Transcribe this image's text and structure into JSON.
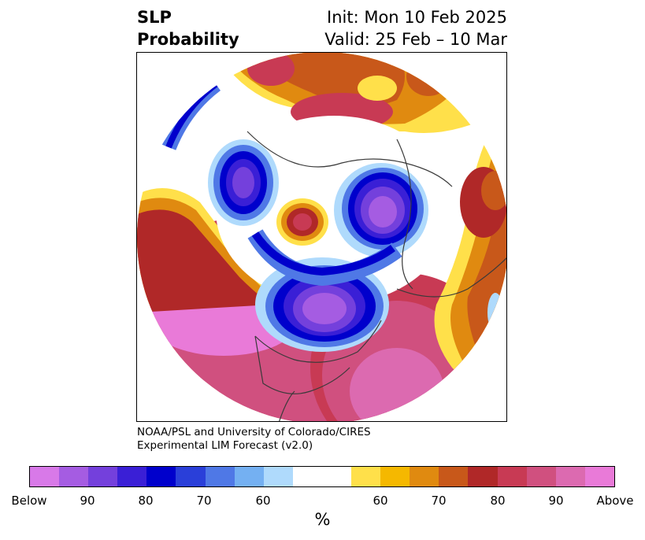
{
  "title": {
    "left_line1": "SLP",
    "left_line2": "Probability",
    "right_line1": "Init: Mon 10 Feb 2025",
    "right_line2": "Valid: 25 Feb – 10 Mar"
  },
  "credit": {
    "line1": "NOAA/PSL and University of Colorado/CIRES",
    "line2": "Experimental LIM Forecast (v2.0)"
  },
  "colorbar": {
    "colors": [
      "#d879e8",
      "#a55ce2",
      "#7440dc",
      "#3a1fd6",
      "#0000cc",
      "#2a3fd9",
      "#4f78e6",
      "#74b0f2",
      "#afdafc",
      "#ffffff",
      "#ffe04a",
      "#f5b800",
      "#e08a10",
      "#c8581a",
      "#b02828",
      "#c83a54",
      "#d0507f",
      "#dc6ab0",
      "#e97ad8"
    ],
    "tick_labels": {
      "below": "Below",
      "b90": "90",
      "b80": "80",
      "b70": "70",
      "b60": "60",
      "a60": "60",
      "a70": "70",
      "a80": "80",
      "a90": "90",
      "above": "Above"
    },
    "unit": "%"
  }
}
